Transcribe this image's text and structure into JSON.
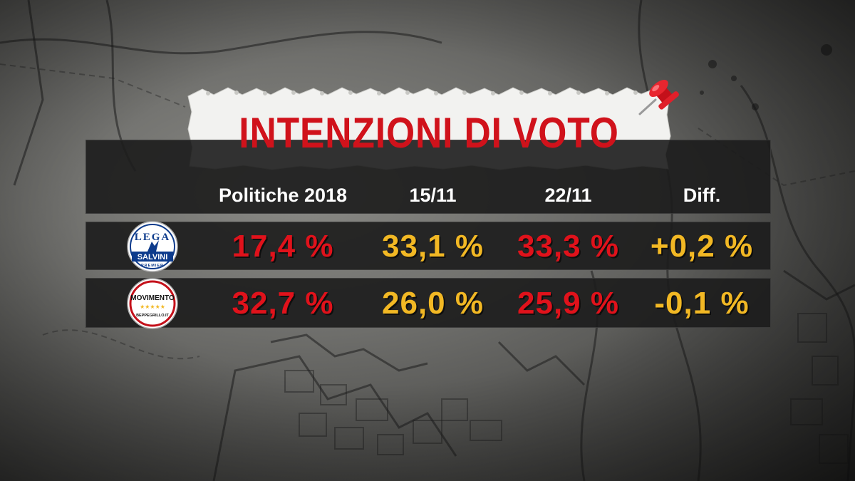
{
  "title": "INTENZIONI DI VOTO",
  "colors": {
    "title": "#d0121b",
    "red_value": "#e0121b",
    "yellow_value": "#f2b824",
    "header_text": "#ffffff",
    "band": "#1c1c1c"
  },
  "columns": [
    "Politiche 2018",
    "15/11",
    "22/11",
    "Diff."
  ],
  "rows": [
    {
      "party": "Lega",
      "logo_lines": [
        "LEGA",
        "SALVINI",
        "PREMIER"
      ],
      "values": [
        "17,4 %",
        "33,1 %",
        "33,3 %",
        "+0,2 %"
      ],
      "value_colors": [
        "red",
        "yellow",
        "red",
        "yellow"
      ]
    },
    {
      "party": "Movimento 5 Stelle",
      "logo_lines": [
        "MOVIMENTO",
        "★★★★★",
        "BEPPEGRILLO.IT"
      ],
      "values": [
        "32,7 %",
        "26,0 %",
        "25,9 %",
        "-0,1 %"
      ],
      "value_colors": [
        "red",
        "yellow",
        "red",
        "yellow"
      ]
    }
  ],
  "chart_data": {
    "type": "table",
    "title": "INTENZIONI DI VOTO",
    "columns": [
      "Politiche 2018",
      "15/11",
      "22/11",
      "Diff."
    ],
    "rows": [
      {
        "label": "Lega",
        "values": [
          17.4,
          33.1,
          33.3,
          0.2
        ]
      },
      {
        "label": "Movimento 5 Stelle",
        "values": [
          32.7,
          26.0,
          25.9,
          -0.1
        ]
      }
    ],
    "unit": "%"
  }
}
